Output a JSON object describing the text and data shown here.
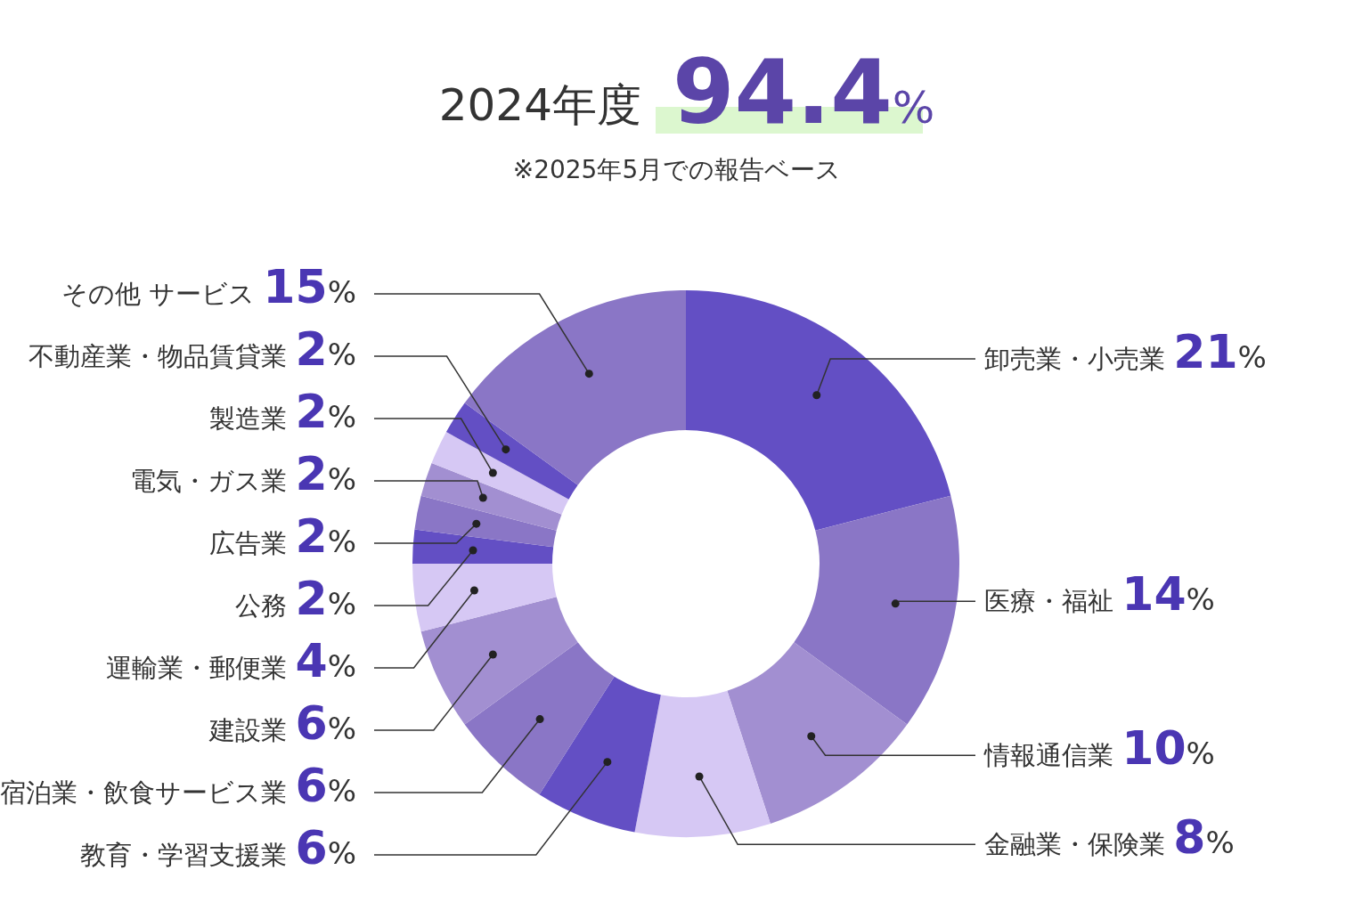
{
  "chart_data": {
    "type": "donut",
    "title": "2024年度",
    "subtitle": "※2025年5月での報告ベース",
    "annotations": [
      "94.4%"
    ],
    "categories": [
      "卸売業・小売業",
      "医療・福祉",
      "情報通信業",
      "金融業・保険業",
      "教育・学習支援業",
      "宿泊業・飲食サービス業",
      "建設業",
      "運輸業・郵便業",
      "公務",
      "広告業",
      "電気・ガス業",
      "製造業",
      "不動産業・物品賃貸業",
      "その他 サービス"
    ],
    "values": [
      21,
      14,
      10,
      8,
      6,
      6,
      6,
      4,
      2,
      2,
      2,
      2,
      2,
      15
    ],
    "value_labels": [
      "21%",
      "14%",
      "10%",
      "8%",
      "6%",
      "6%",
      "6%",
      "4%",
      "2%",
      "2%",
      "2%",
      "2%",
      "2%",
      "15%"
    ],
    "colors": [
      "#634fc4",
      "#8a76c6",
      "#a28fd1",
      "#d6c8f4",
      "#634fc4",
      "#8a76c6",
      "#a28fd1",
      "#d6c8f4",
      "#634fc4",
      "#8a76c6",
      "#a28fd1",
      "#d6c8f4",
      "#634fc4",
      "#8a76c6"
    ]
  }
}
